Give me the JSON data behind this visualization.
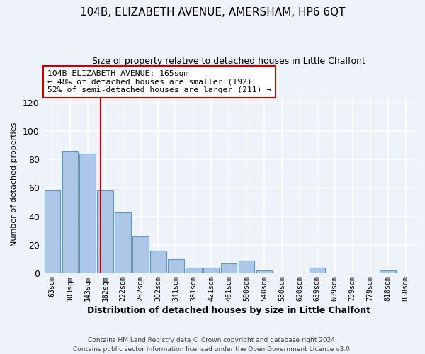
{
  "title": "104B, ELIZABETH AVENUE, AMERSHAM, HP6 6QT",
  "subtitle": "Size of property relative to detached houses in Little Chalfont",
  "xlabel": "Distribution of detached houses by size in Little Chalfont",
  "ylabel": "Number of detached properties",
  "categories": [
    "63sqm",
    "103sqm",
    "143sqm",
    "182sqm",
    "222sqm",
    "262sqm",
    "302sqm",
    "341sqm",
    "381sqm",
    "421sqm",
    "461sqm",
    "500sqm",
    "540sqm",
    "580sqm",
    "620sqm",
    "659sqm",
    "699sqm",
    "739sqm",
    "779sqm",
    "818sqm",
    "858sqm"
  ],
  "values": [
    58,
    86,
    84,
    58,
    43,
    26,
    16,
    10,
    4,
    4,
    7,
    9,
    2,
    0,
    0,
    4,
    0,
    0,
    0,
    2,
    0
  ],
  "bar_color": "#aec6e8",
  "bar_edge_color": "#5a9bc5",
  "vline_x_index": 2.72,
  "vline_color": "#cc0000",
  "annotation_text": "104B ELIZABETH AVENUE: 165sqm\n← 48% of detached houses are smaller (192)\n52% of semi-detached houses are larger (211) →",
  "annotation_box_color": "#ffffff",
  "annotation_box_edge_color": "#cc0000",
  "ylim": [
    0,
    125
  ],
  "yticks": [
    0,
    20,
    40,
    60,
    80,
    100,
    120
  ],
  "bg_color": "#eef2f9",
  "grid_color": "#ffffff",
  "footer": "Contains HM Land Registry data © Crown copyright and database right 2024.\nContains public sector information licensed under the Open Government Licence v3.0."
}
